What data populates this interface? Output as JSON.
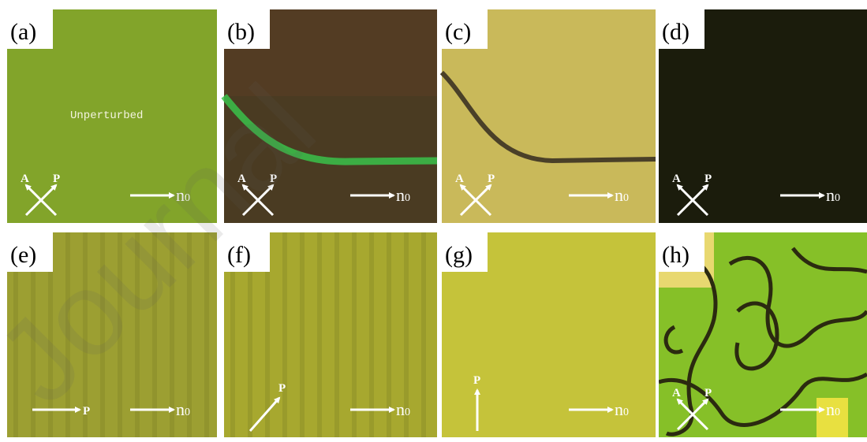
{
  "watermark": "Journal",
  "panels": [
    {
      "label": "(a)",
      "annotation": "Unperturbed",
      "polarizer_labels": [
        "A",
        "P"
      ],
      "director": "n",
      "director_subscript": "0"
    },
    {
      "label": "(b)",
      "polarizer_labels": [
        "A",
        "P"
      ],
      "director": "n",
      "director_subscript": "0"
    },
    {
      "label": "(c)",
      "polarizer_labels": [
        "A",
        "P"
      ],
      "director": "n",
      "director_subscript": "0"
    },
    {
      "label": "(d)",
      "polarizer_labels": [
        "A",
        "P"
      ],
      "director": "n",
      "director_subscript": "0"
    },
    {
      "label": "(e)",
      "polarizer_labels": [
        "P"
      ],
      "director": "n",
      "director_subscript": "0"
    },
    {
      "label": "(f)",
      "polarizer_labels": [
        "P"
      ],
      "director": "n",
      "director_subscript": "0"
    },
    {
      "label": "(g)",
      "polarizer_labels": [
        "P"
      ],
      "director": "n",
      "director_subscript": "0"
    },
    {
      "label": "(h)",
      "polarizer_labels": [
        "A",
        "P"
      ],
      "director": "n",
      "director_subscript": "0"
    }
  ]
}
